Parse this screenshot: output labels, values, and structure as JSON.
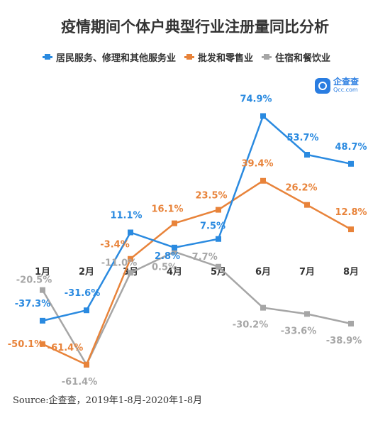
{
  "chart_data": {
    "type": "line",
    "title": "疫情期间个体户典型行业注册量同比分析",
    "categories": [
      "1月",
      "2月",
      "3月",
      "4月",
      "5月",
      "6月",
      "7月",
      "8月"
    ],
    "series": [
      {
        "name": "居民服务、修理和其他服务业",
        "color": "#2a8ae0",
        "values": [
          -37.3,
          -31.6,
          11.1,
          2.8,
          7.5,
          74.9,
          53.7,
          48.7
        ],
        "labels": [
          "-37.3%",
          "-31.6%",
          "11.1%",
          "2.8%",
          "7.5%",
          "74.9%",
          "53.7%",
          "48.7%"
        ]
      },
      {
        "name": "批发和零售业",
        "color": "#e8833a",
        "values": [
          -50.1,
          -61.4,
          -3.4,
          16.1,
          23.5,
          39.4,
          26.2,
          12.8
        ],
        "labels": [
          "-50.1%",
          "-61.4%",
          "-3.4%",
          "16.1%",
          "23.5%",
          "39.4%",
          "26.2%",
          "12.8%"
        ]
      },
      {
        "name": "住宿和餐饮业",
        "color": "#a6a6a6",
        "values": [
          -20.5,
          -61.4,
          -11.0,
          0.5,
          -7.7,
          -30.2,
          -33.6,
          -38.9
        ],
        "labels": [
          "-20.5%",
          "-61.4%",
          "-11.0%",
          "0.5%",
          "-7.7%",
          "-30.2%",
          "-33.6%",
          "-38.9%"
        ]
      }
    ],
    "legend_position": "top",
    "grid": false
  },
  "logo": {
    "cn": "企查查",
    "en": "Qcc.com"
  },
  "source": "Source:企查查，2019年1-8月-2020年1-8月"
}
